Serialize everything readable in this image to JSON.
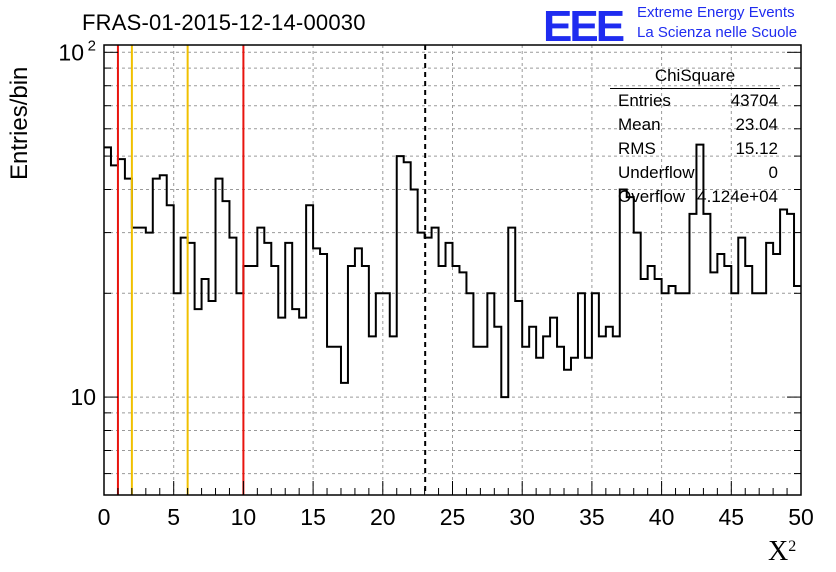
{
  "chart_data": {
    "type": "histogram",
    "title": "FRAS-01-2015-12-14-00030",
    "xlabel": "X",
    "xlabel_superscript": "2",
    "ylabel": "Entries/bin",
    "xlim": [
      0,
      50
    ],
    "ylim": [
      5.2,
      105
    ],
    "yscale": "log",
    "grid": true,
    "bin_width": 0.5,
    "x_ticks": [
      "0",
      "5",
      "10",
      "15",
      "20",
      "25",
      "30",
      "35",
      "40",
      "45",
      "50"
    ],
    "y_tick_labels": [
      {
        "value": 10,
        "label": "10"
      },
      {
        "value": 100,
        "label": "10",
        "sup": "2"
      }
    ],
    "values": [
      53,
      47,
      49,
      43,
      31,
      31,
      30,
      43,
      44,
      36,
      20,
      29,
      28,
      18,
      22,
      19,
      43,
      37,
      29,
      20,
      24,
      24,
      31,
      28,
      24,
      17,
      28,
      18,
      17,
      36,
      27,
      26,
      14,
      14,
      11,
      24,
      27,
      24,
      15,
      20,
      20,
      15,
      50,
      48,
      40,
      30,
      29,
      31,
      24,
      28,
      24,
      23,
      20,
      14,
      14,
      20,
      16,
      10,
      31,
      19,
      14,
      16,
      13,
      15,
      17,
      14,
      12,
      13,
      20,
      13,
      20,
      15,
      16,
      15,
      40,
      38,
      30,
      22,
      24,
      22,
      20,
      21,
      20,
      20,
      34,
      54,
      34,
      23,
      26,
      24,
      20,
      29,
      24,
      20,
      20,
      28,
      26,
      35,
      34,
      21
    ],
    "vertical_lines": [
      {
        "x": 1,
        "color": "#e8140e",
        "style": "solid"
      },
      {
        "x": 2,
        "color": "#f0c000",
        "style": "solid"
      },
      {
        "x": 6,
        "color": "#f0c000",
        "style": "solid"
      },
      {
        "x": 10,
        "color": "#e8140e",
        "style": "solid"
      },
      {
        "x": 23.04,
        "color": "#000000",
        "style": "dashed"
      }
    ]
  },
  "stats_box": {
    "name": "ChiSquare",
    "rows": [
      {
        "label": "Entries",
        "value": "43704"
      },
      {
        "label": "Mean",
        "value": "23.04"
      },
      {
        "label": "RMS",
        "value": "15.12"
      },
      {
        "label": "Underflow",
        "value": "0"
      },
      {
        "label": "Overflow",
        "value": "4.124e+04"
      }
    ]
  },
  "logo": {
    "mark": "EEE",
    "line1": "Extreme Energy Events",
    "line2": "La Scienza nelle Scuole",
    "color": "#1f2cf0"
  }
}
